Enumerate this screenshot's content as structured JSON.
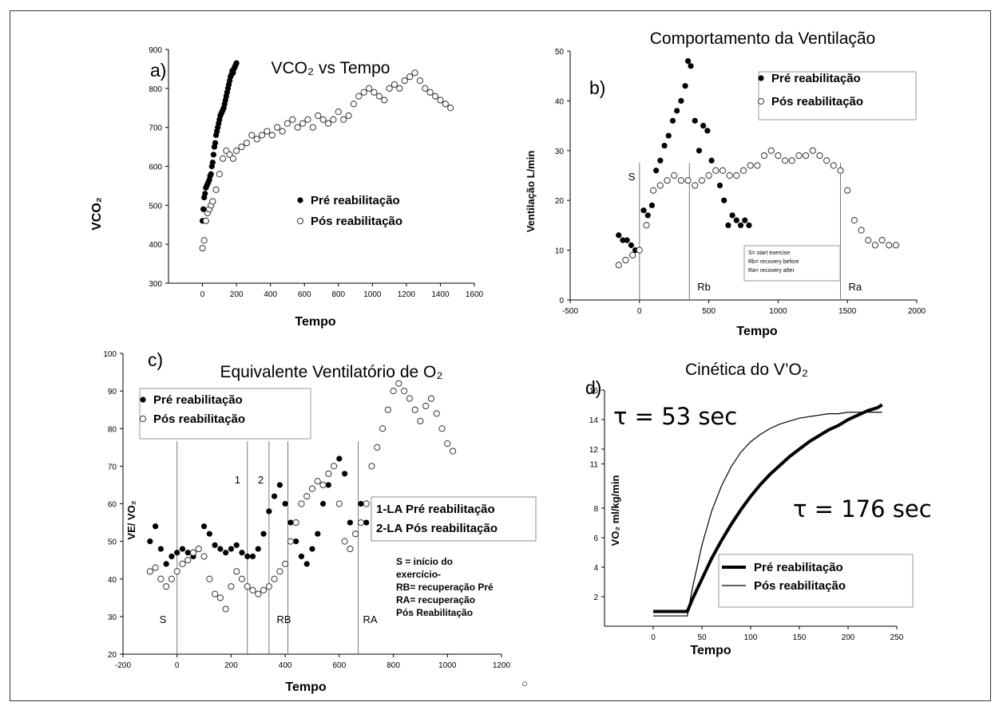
{
  "chart_data": [
    {
      "id": "a",
      "type": "scatter",
      "panel_label": "a)",
      "title": "VCO₂ vs Tempo",
      "xlabel": "Tempo",
      "ylabel": "VCO₂",
      "xlim": [
        -200,
        1600
      ],
      "ylim": [
        300,
        900
      ],
      "xticks": [
        0,
        200,
        400,
        600,
        800,
        1000,
        1200,
        1400,
        1600
      ],
      "yticks": [
        300,
        400,
        500,
        600,
        700,
        800,
        900
      ],
      "legend": [
        "Pré reabilitação",
        "Pós reabilitação"
      ],
      "series": [
        {
          "name": "Pré reabilitação",
          "marker": "filled",
          "x": [
            0,
            5,
            10,
            15,
            20,
            25,
            30,
            35,
            40,
            45,
            50,
            55,
            60,
            65,
            70,
            75,
            80,
            85,
            90,
            95,
            100,
            105,
            110,
            115,
            120,
            125,
            130,
            135,
            140,
            145,
            150,
            155,
            160,
            165,
            170,
            175,
            180,
            185,
            190,
            195,
            200
          ],
          "y": [
            460,
            490,
            520,
            530,
            545,
            550,
            555,
            560,
            565,
            575,
            580,
            600,
            610,
            630,
            650,
            660,
            680,
            690,
            700,
            710,
            720,
            730,
            735,
            740,
            745,
            750,
            760,
            770,
            780,
            790,
            800,
            810,
            820,
            830,
            835,
            845,
            840,
            850,
            855,
            860,
            865
          ]
        },
        {
          "name": "Pós reabilitação",
          "marker": "open",
          "x": [
            0,
            10,
            20,
            30,
            40,
            50,
            60,
            80,
            100,
            120,
            140,
            160,
            180,
            200,
            230,
            260,
            290,
            320,
            350,
            380,
            410,
            440,
            470,
            500,
            530,
            560,
            590,
            620,
            650,
            680,
            710,
            740,
            770,
            800,
            830,
            860,
            890,
            920,
            950,
            980,
            1010,
            1040,
            1070,
            1100,
            1130,
            1160,
            1190,
            1220,
            1250,
            1280,
            1310,
            1340,
            1370,
            1400,
            1430,
            1460
          ],
          "y": [
            390,
            410,
            460,
            480,
            490,
            500,
            510,
            540,
            580,
            620,
            640,
            630,
            620,
            640,
            650,
            660,
            680,
            670,
            680,
            690,
            680,
            700,
            690,
            710,
            720,
            700,
            710,
            720,
            700,
            730,
            720,
            710,
            720,
            740,
            720,
            730,
            760,
            780,
            790,
            800,
            790,
            780,
            770,
            800,
            810,
            800,
            820,
            830,
            840,
            820,
            800,
            790,
            780,
            770,
            760,
            750
          ]
        }
      ]
    },
    {
      "id": "b",
      "type": "scatter",
      "panel_label": "b)",
      "title": "Comportamento da Ventilação",
      "xlabel": "Tempo",
      "ylabel": "Ventilação L/min",
      "xlim": [
        -500,
        2000
      ],
      "ylim": [
        0,
        50
      ],
      "xticks": [
        -500,
        0,
        500,
        1000,
        1500,
        2000
      ],
      "yticks": [
        0,
        10,
        20,
        30,
        40,
        50
      ],
      "legend": [
        "Pré reabilitação",
        "Pós reabilitação"
      ],
      "vlines": [
        {
          "x": 0,
          "label": "S"
        },
        {
          "x": 360,
          "label": "Rb"
        },
        {
          "x": 1450,
          "label": "Ra"
        }
      ],
      "note": [
        "S= start exercise",
        "Rb= recovery before",
        "Ra= recovery after"
      ],
      "series": [
        {
          "name": "Pré reabilitação",
          "marker": "filled",
          "x": [
            -150,
            -120,
            -90,
            -60,
            -30,
            0,
            30,
            60,
            90,
            120,
            150,
            180,
            210,
            240,
            270,
            300,
            330,
            350,
            370,
            400,
            430,
            460,
            490,
            520,
            550,
            580,
            610,
            640,
            670,
            700,
            730,
            760,
            790
          ],
          "y": [
            13,
            12,
            12,
            11,
            10,
            10,
            18,
            17,
            19,
            26,
            28,
            31,
            33,
            36,
            38,
            40,
            43,
            48,
            47,
            36,
            30,
            35,
            34,
            28,
            26,
            23,
            20,
            15,
            17,
            16,
            15,
            16,
            15
          ]
        },
        {
          "name": "Pós reabilitação",
          "marker": "open",
          "x": [
            -150,
            -100,
            -50,
            0,
            50,
            100,
            150,
            200,
            250,
            300,
            350,
            400,
            450,
            500,
            550,
            600,
            650,
            700,
            750,
            800,
            850,
            900,
            950,
            1000,
            1050,
            1100,
            1150,
            1200,
            1250,
            1300,
            1350,
            1400,
            1450,
            1500,
            1550,
            1600,
            1650,
            1700,
            1750,
            1800,
            1850
          ],
          "y": [
            7,
            8,
            9,
            10,
            15,
            22,
            23,
            24,
            25,
            24,
            24,
            23,
            24,
            25,
            26,
            26,
            25,
            25,
            26,
            27,
            27,
            29,
            30,
            29,
            28,
            28,
            29,
            29,
            30,
            29,
            28,
            27,
            26,
            22,
            16,
            14,
            12,
            11,
            12,
            11,
            11
          ]
        }
      ]
    },
    {
      "id": "c",
      "type": "scatter",
      "panel_label": "c)",
      "title": "Equivalente Ventilatório de O₂",
      "xlabel": "Tempo",
      "ylabel": "VE/ VO₂",
      "xlim": [
        -200,
        1200
      ],
      "ylim": [
        20,
        100
      ],
      "xticks": [
        -200,
        0,
        200,
        400,
        600,
        800,
        1000,
        1200
      ],
      "yticks": [
        20,
        30,
        40,
        50,
        60,
        70,
        80,
        90,
        100
      ],
      "legend": [
        "Pré reabilitação",
        "Pós reabilitação"
      ],
      "vlines": [
        {
          "x": 0,
          "label": "S"
        },
        {
          "x": 260,
          "label": "1"
        },
        {
          "x": 340,
          "label": "2"
        },
        {
          "x": 410,
          "label": "RB"
        },
        {
          "x": 670,
          "label": "RA"
        }
      ],
      "labels_box": [
        "1-LA Pré reabilitação",
        "2-LA Pós reabilitação"
      ],
      "note": [
        "S = início do",
        "exercício-",
        "RB= recuperação  Pré",
        "RA= recuperação",
        "Pós Reabilitação"
      ],
      "series": [
        {
          "name": "Pré reabilitação",
          "marker": "filled",
          "x": [
            -100,
            -80,
            -60,
            -40,
            -20,
            0,
            20,
            40,
            60,
            80,
            100,
            120,
            140,
            160,
            180,
            200,
            220,
            240,
            260,
            280,
            300,
            320,
            340,
            360,
            380,
            400,
            420,
            440,
            460,
            480,
            500,
            520,
            540,
            560,
            580,
            600,
            620,
            640,
            660,
            680,
            700
          ],
          "y": [
            50,
            54,
            48,
            44,
            46,
            47,
            48,
            47,
            46,
            48,
            54,
            52,
            49,
            48,
            47,
            48,
            49,
            47,
            46,
            46,
            48,
            52,
            58,
            62,
            65,
            60,
            55,
            50,
            46,
            44,
            48,
            52,
            60,
            65,
            70,
            72,
            68,
            55,
            52,
            60,
            55
          ]
        },
        {
          "name": "Pós reabilitação",
          "marker": "open",
          "x": [
            -100,
            -80,
            -60,
            -40,
            -20,
            0,
            20,
            40,
            60,
            80,
            100,
            120,
            140,
            160,
            180,
            200,
            220,
            240,
            260,
            280,
            300,
            320,
            340,
            360,
            380,
            400,
            420,
            440,
            460,
            480,
            500,
            520,
            540,
            560,
            580,
            600,
            620,
            640,
            660,
            680,
            700,
            720,
            740,
            760,
            780,
            800,
            820,
            840,
            860,
            880,
            900,
            920,
            940,
            960,
            980,
            1000,
            1020
          ],
          "y": [
            42,
            43,
            40,
            38,
            40,
            42,
            44,
            45,
            47,
            48,
            46,
            40,
            36,
            35,
            32,
            38,
            42,
            40,
            38,
            37,
            36,
            37,
            38,
            40,
            42,
            44,
            50,
            55,
            60,
            62,
            64,
            66,
            65,
            68,
            70,
            60,
            50,
            48,
            52,
            55,
            60,
            70,
            75,
            80,
            85,
            90,
            92,
            90,
            88,
            85,
            82,
            86,
            88,
            84,
            80,
            76,
            74
          ]
        }
      ]
    },
    {
      "id": "d",
      "type": "line",
      "panel_label": "d)",
      "title": "Cinética do V’O₂",
      "xlabel": "Tempo",
      "ylabel": "VO₂ ml/kg/min",
      "xlim": [
        -50,
        250
      ],
      "ylim": [
        0,
        16
      ],
      "xticks": [
        0,
        50,
        100,
        150,
        200,
        250
      ],
      "yticks": [
        2,
        4,
        6,
        8,
        11,
        12,
        14,
        16
      ],
      "legend": [
        "Pré reabilitação",
        "Pós reabilitação"
      ],
      "annotations": [
        "τ = 53 sec",
        "τ = 176 sec"
      ],
      "series": [
        {
          "name": "Pré reabilitação",
          "style": "thick",
          "x": [
            0,
            10,
            20,
            30,
            35,
            40,
            50,
            60,
            70,
            80,
            90,
            100,
            110,
            120,
            130,
            140,
            150,
            160,
            170,
            180,
            190,
            200,
            210,
            220,
            230,
            235
          ],
          "y": [
            1.0,
            1.0,
            1.0,
            1.0,
            1.0,
            1.8,
            3.2,
            4.6,
            5.8,
            6.9,
            7.9,
            8.8,
            9.6,
            10.3,
            10.9,
            11.5,
            12.0,
            12.5,
            12.9,
            13.3,
            13.6,
            14.0,
            14.3,
            14.6,
            14.8,
            15.0
          ]
        },
        {
          "name": "Pós reabilitação",
          "style": "thin",
          "x": [
            0,
            10,
            20,
            30,
            35,
            40,
            50,
            60,
            70,
            80,
            90,
            100,
            110,
            120,
            130,
            140,
            150,
            160,
            170,
            180,
            190,
            200,
            210,
            220,
            230,
            235
          ],
          "y": [
            0.7,
            0.7,
            0.7,
            0.7,
            0.7,
            2.5,
            5.5,
            7.8,
            9.5,
            10.8,
            11.8,
            12.5,
            13.0,
            13.4,
            13.7,
            13.9,
            14.1,
            14.2,
            14.3,
            14.4,
            14.4,
            14.5,
            14.5,
            14.5,
            14.5,
            14.5
          ]
        }
      ]
    }
  ],
  "stray_marker_symbol": "○"
}
